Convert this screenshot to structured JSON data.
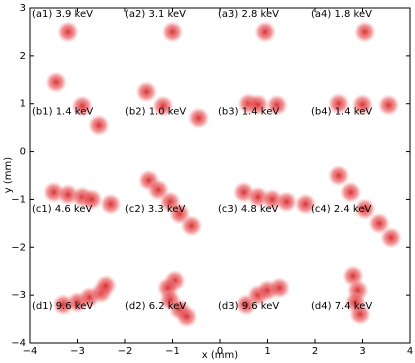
{
  "chart_data": {
    "type": "scatter",
    "xlabel": "x (mm)",
    "ylabel": "y (mm)",
    "xlim": [
      -4,
      4
    ],
    "ylim": [
      -4,
      3
    ],
    "xticks": [
      {
        "value": -4,
        "label": "−4"
      },
      {
        "value": -3,
        "label": "−3"
      },
      {
        "value": -2,
        "label": "−2"
      },
      {
        "value": -1,
        "label": "−1"
      },
      0,
      1,
      2,
      3,
      4
    ],
    "yticks": [
      {
        "value": -4,
        "label": "−4"
      },
      {
        "value": -3,
        "label": "−3"
      },
      {
        "value": -2,
        "label": "−2"
      },
      {
        "value": -1,
        "label": "−1"
      },
      0,
      1,
      2,
      3
    ],
    "annotations": [
      "(a1) 3.9 keV",
      "(a2) 3.1 keV",
      "(a3) 2.8 keV",
      "(a4) 1.8 keV",
      "(b1) 1.4 keV",
      "(b2) 1.0 keV",
      "(b3) 1.4 keV",
      "(b4) 1.4 keV",
      "(c1) 4.6 keV",
      "(c2) 3.3 keV",
      "(c3) 4.8 keV",
      "(c4) 2.4 keV",
      "(d1) 9.6 keV",
      "(d2) 6.2 keV",
      "(d3) 9.6 keV",
      "(d4) 7.4 keV"
    ],
    "series": [
      {
        "color": "#d62728",
        "x": [
          -3.2,
          -1.0,
          0.95,
          3.05,
          -3.45,
          -2.9,
          -2.55,
          -1.55,
          -1.2,
          -0.45,
          0.6,
          0.8,
          1.2,
          2.5,
          3.0,
          3.55,
          -3.5,
          -3.2,
          -2.9,
          -2.7,
          -2.3,
          -1.5,
          -1.3,
          -1.05,
          -0.85,
          -0.6,
          0.5,
          0.8,
          1.1,
          1.4,
          1.8,
          2.5,
          2.75,
          3.05,
          3.35,
          3.6,
          -3.3,
          -3.0,
          -2.75,
          -2.5,
          -2.4,
          -0.95,
          -1.1,
          -1.05,
          -0.85,
          -0.7,
          0.55,
          0.8,
          1.0,
          1.25,
          2.8,
          2.9,
          2.85,
          2.95
        ],
        "y": [
          2.5,
          2.5,
          2.5,
          2.5,
          1.45,
          0.95,
          0.55,
          1.25,
          0.95,
          0.7,
          1.0,
          0.98,
          0.97,
          1.0,
          0.98,
          0.97,
          -0.85,
          -0.9,
          -0.95,
          -1.0,
          -1.1,
          -0.6,
          -0.8,
          -1.05,
          -1.3,
          -1.55,
          -0.85,
          -0.95,
          -1.0,
          -1.05,
          -1.1,
          -0.5,
          -0.85,
          -1.2,
          -1.5,
          -1.8,
          -3.2,
          -3.15,
          -3.05,
          -2.95,
          -2.8,
          -2.7,
          -2.85,
          -3.1,
          -3.3,
          -3.45,
          -3.2,
          -3.0,
          -2.9,
          -2.85,
          -2.6,
          -2.9,
          -3.15,
          -3.4
        ]
      }
    ]
  }
}
